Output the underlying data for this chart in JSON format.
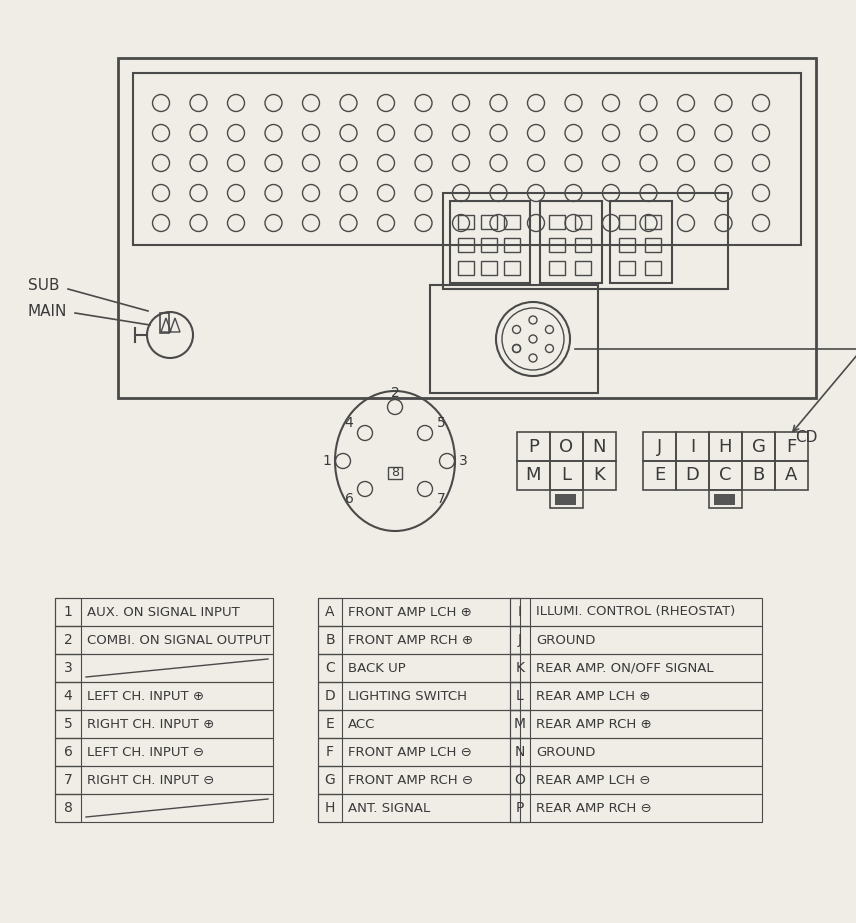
{
  "bg_color": "#f0ede6",
  "line_color": "#4a4a4a",
  "text_color": "#3a3a3a",
  "wiring_table_left": [
    [
      "1",
      "AUX. ON SIGNAL INPUT"
    ],
    [
      "2",
      "COMBI. ON SIGNAL OUTPUT"
    ],
    [
      "3",
      ""
    ],
    [
      "4",
      "LEFT CH. INPUT ⊕"
    ],
    [
      "5",
      "RIGHT CH. INPUT ⊕"
    ],
    [
      "6",
      "LEFT CH. INPUT ⊖"
    ],
    [
      "7",
      "RIGHT CH. INPUT ⊖"
    ],
    [
      "8",
      ""
    ]
  ],
  "wiring_table_mid": [
    [
      "A",
      "FRONT AMP LCH ⊕"
    ],
    [
      "B",
      "FRONT AMP RCH ⊕"
    ],
    [
      "C",
      "BACK UP"
    ],
    [
      "D",
      "LIGHTING SWITCH"
    ],
    [
      "E",
      "ACC"
    ],
    [
      "F",
      "FRONT AMP LCH ⊖"
    ],
    [
      "G",
      "FRONT AMP RCH ⊖"
    ],
    [
      "H",
      "ANT. SIGNAL"
    ]
  ],
  "wiring_table_right": [
    [
      "I",
      "ILLUMI. CONTROL (RHEOSTAT)"
    ],
    [
      "J",
      "GROUND"
    ],
    [
      "K",
      "REAR AMP. ON/OFF SIGNAL"
    ],
    [
      "L",
      "REAR AMP LCH ⊕"
    ],
    [
      "M",
      "REAR AMP RCH ⊕"
    ],
    [
      "N",
      "GROUND"
    ],
    [
      "O",
      "REAR AMP LCH ⊖"
    ],
    [
      "P",
      "REAR AMP RCH ⊖"
    ]
  ],
  "connector_small": [
    [
      "P",
      "O",
      "N"
    ],
    [
      "M",
      "L",
      "K"
    ]
  ],
  "connector_large": [
    [
      "J",
      "I",
      "H",
      "G",
      "F"
    ],
    [
      "E",
      "D",
      "C",
      "B",
      "A"
    ]
  ],
  "cd_label": "CD",
  "sub_label": "SUB",
  "main_label": "MAIN",
  "dark_square_color": "#555555",
  "vent_rows": 5,
  "vent_cols": 17
}
